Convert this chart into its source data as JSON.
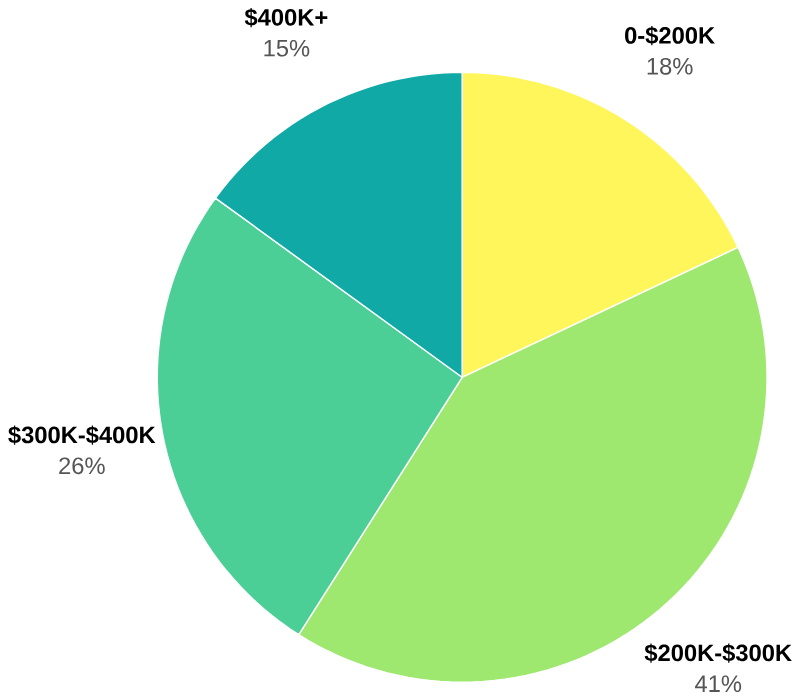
{
  "chart_data": {
    "type": "pie",
    "categories": [
      "0-$200K",
      "$200K-$300K",
      "$300K-$400K",
      "$400K+"
    ],
    "values": [
      18,
      41,
      26,
      15
    ],
    "value_labels": [
      "18%",
      "41%",
      "26%",
      "15%"
    ],
    "colors": [
      "#fef65b",
      "#9fe86f",
      "#4ccf96",
      "#10a9a6"
    ]
  }
}
